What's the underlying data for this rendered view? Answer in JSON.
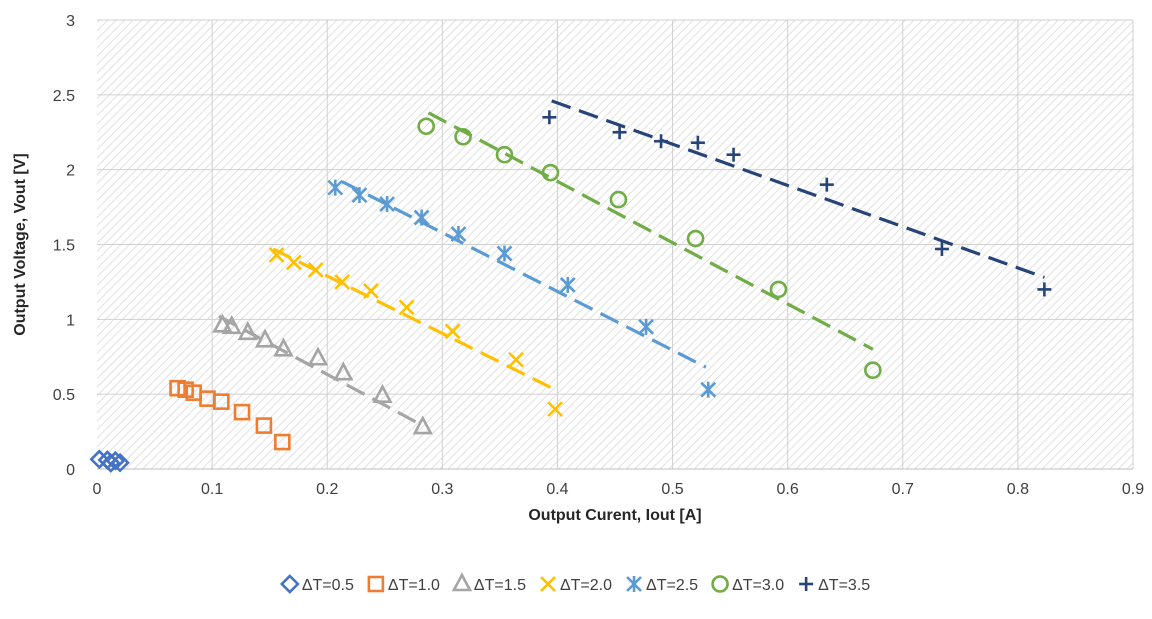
{
  "chart_data": {
    "type": "scatter",
    "xlabel": "Output Curent, Iout [A]",
    "ylabel": "Output Voltage, Vout [V]",
    "xlim": [
      0,
      0.9
    ],
    "ylim": [
      0,
      3
    ],
    "xticks": [
      0,
      0.1,
      0.2,
      0.3,
      0.4,
      0.5,
      0.6,
      0.7,
      0.8,
      0.9
    ],
    "xtick_labels": [
      "0",
      "0.1",
      "0.2",
      "0.3",
      "0.4",
      "0.5",
      "0.6",
      "0.7",
      "0.8",
      "0.9"
    ],
    "yticks": [
      0,
      0.5,
      1,
      1.5,
      2,
      2.5,
      3
    ],
    "ytick_labels": [
      "0",
      "0.5",
      "1",
      "1.5",
      "2",
      "2.5",
      "3"
    ],
    "grid": true,
    "legend_position": "bottom",
    "series": [
      {
        "name": "ΔT=0.5",
        "color": "#4472C4",
        "marker": "diamond",
        "x": [
          0.002,
          0.009,
          0.012,
          0.016,
          0.02
        ],
        "y": [
          0.065,
          0.06,
          0.04,
          0.055,
          0.042
        ],
        "trendline": null
      },
      {
        "name": "ΔT=1.0",
        "color": "#ED7D31",
        "marker": "square",
        "x": [
          0.07,
          0.077,
          0.084,
          0.096,
          0.108,
          0.126,
          0.145,
          0.161
        ],
        "y": [
          0.54,
          0.53,
          0.51,
          0.47,
          0.45,
          0.38,
          0.29,
          0.18
        ],
        "trendline": null
      },
      {
        "name": "ΔT=1.5",
        "color": "#A5A5A5",
        "marker": "triangle",
        "x": [
          0.109,
          0.117,
          0.131,
          0.146,
          0.162,
          0.192,
          0.214,
          0.248,
          0.283
        ],
        "y": [
          0.96,
          0.95,
          0.91,
          0.86,
          0.8,
          0.74,
          0.64,
          0.49,
          0.28
        ],
        "trendline": {
          "x": [
            0.106,
            0.283
          ],
          "y": [
            1.02,
            0.29
          ]
        }
      },
      {
        "name": "ΔT=2.0",
        "color": "#FFC000",
        "marker": "x",
        "x": [
          0.156,
          0.171,
          0.19,
          0.213,
          0.238,
          0.269,
          0.309,
          0.364,
          0.398
        ],
        "y": [
          1.43,
          1.38,
          1.33,
          1.25,
          1.19,
          1.08,
          0.92,
          0.73,
          0.4
        ],
        "trendline": {
          "x": [
            0.153,
            0.398
          ],
          "y": [
            1.47,
            0.53
          ]
        }
      },
      {
        "name": "ΔT=2.5",
        "color": "#5B9BD5",
        "marker": "asterisk",
        "x": [
          0.207,
          0.228,
          0.252,
          0.282,
          0.314,
          0.354,
          0.409,
          0.477,
          0.531
        ],
        "y": [
          1.88,
          1.83,
          1.77,
          1.68,
          1.57,
          1.44,
          1.23,
          0.95,
          0.53
        ],
        "trendline": {
          "x": [
            0.213,
            0.529
          ],
          "y": [
            1.92,
            0.68
          ]
        }
      },
      {
        "name": "ΔT=3.0",
        "color": "#70AD47",
        "marker": "circle",
        "x": [
          0.286,
          0.318,
          0.354,
          0.394,
          0.453,
          0.52,
          0.592,
          0.674
        ],
        "y": [
          2.29,
          2.22,
          2.1,
          1.98,
          1.8,
          1.54,
          1.2,
          0.66
        ],
        "trendline": {
          "x": [
            0.288,
            0.674
          ],
          "y": [
            2.38,
            0.8
          ]
        }
      },
      {
        "name": "ΔT=3.5",
        "color": "#264478",
        "marker": "plus",
        "x": [
          0.393,
          0.454,
          0.49,
          0.522,
          0.553,
          0.634,
          0.734,
          0.823
        ],
        "y": [
          2.35,
          2.25,
          2.19,
          2.18,
          2.1,
          1.9,
          1.47,
          1.2
        ],
        "trendline": {
          "x": [
            0.395,
            0.823
          ],
          "y": [
            2.46,
            1.28
          ]
        }
      }
    ]
  }
}
